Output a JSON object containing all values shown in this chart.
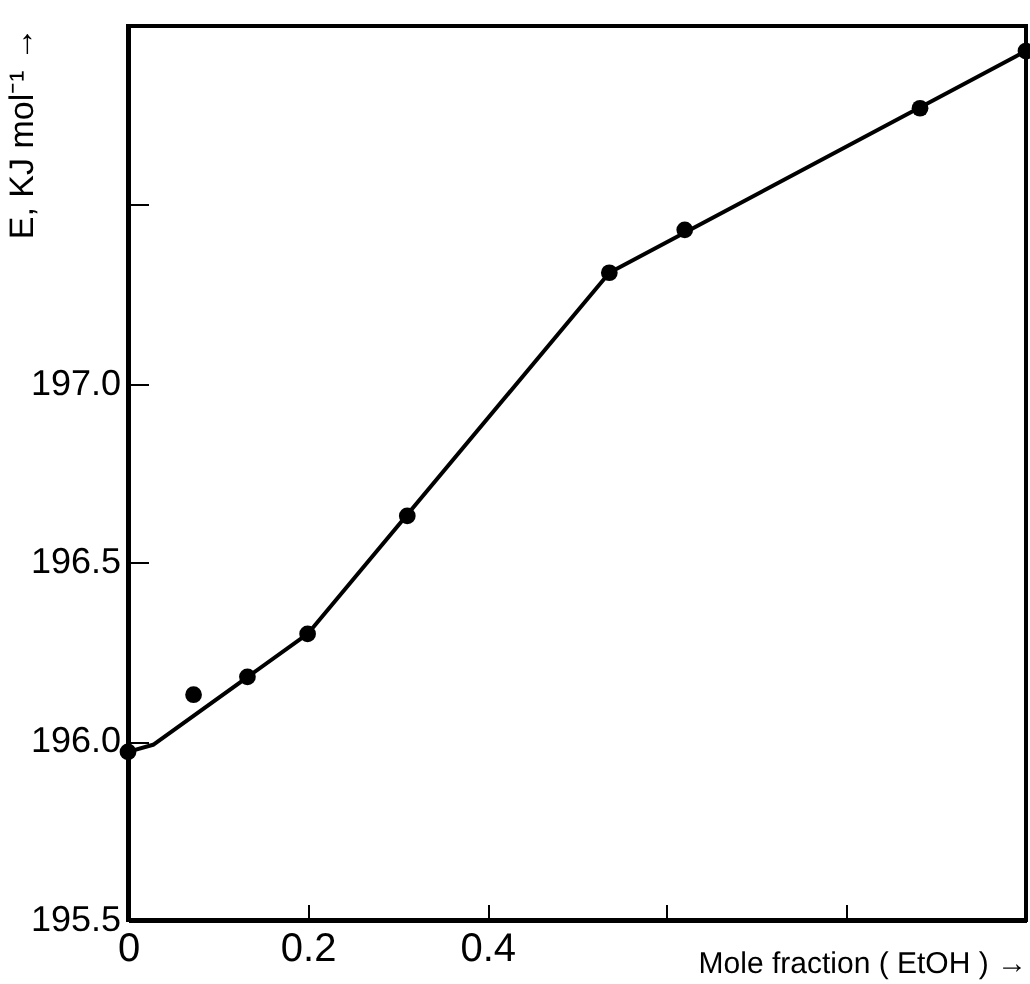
{
  "chart_data": {
    "type": "scatter",
    "xlabel": "Mole fraction ( EtOH ) →",
    "ylabel": "E, KJ mol⁻¹ →",
    "xlim": [
      0,
      1.0
    ],
    "ylim": [
      195.5,
      198.0
    ],
    "xticks": [
      0,
      0.2,
      0.4,
      {
        "value": 0.6,
        "label": null
      },
      {
        "value": 0.8,
        "label": null
      }
    ],
    "yticks": [
      195.5,
      {
        "value": 196.0,
        "label": "196.0"
      },
      196.5,
      {
        "value": 197.0,
        "label": "197.0"
      },
      {
        "value": 197.5,
        "label": null
      }
    ],
    "grid": false,
    "series": [
      {
        "marker": "circle",
        "color": "#000000",
        "x": [
          0,
          0.073,
          0.133,
          0.2,
          0.311,
          0.536,
          0.62,
          0.882,
          1.0
        ],
        "values": [
          195.97,
          196.13,
          196.18,
          196.3,
          196.63,
          197.31,
          197.43,
          197.77,
          197.93
        ]
      },
      {
        "type": "line",
        "marker": "none",
        "line_style": "solid",
        "color": "#000000",
        "x": [
          0,
          0.028,
          0.2,
          0.536,
          1.0
        ],
        "values": [
          195.97,
          195.99,
          196.3,
          197.31,
          197.93
        ]
      }
    ]
  }
}
